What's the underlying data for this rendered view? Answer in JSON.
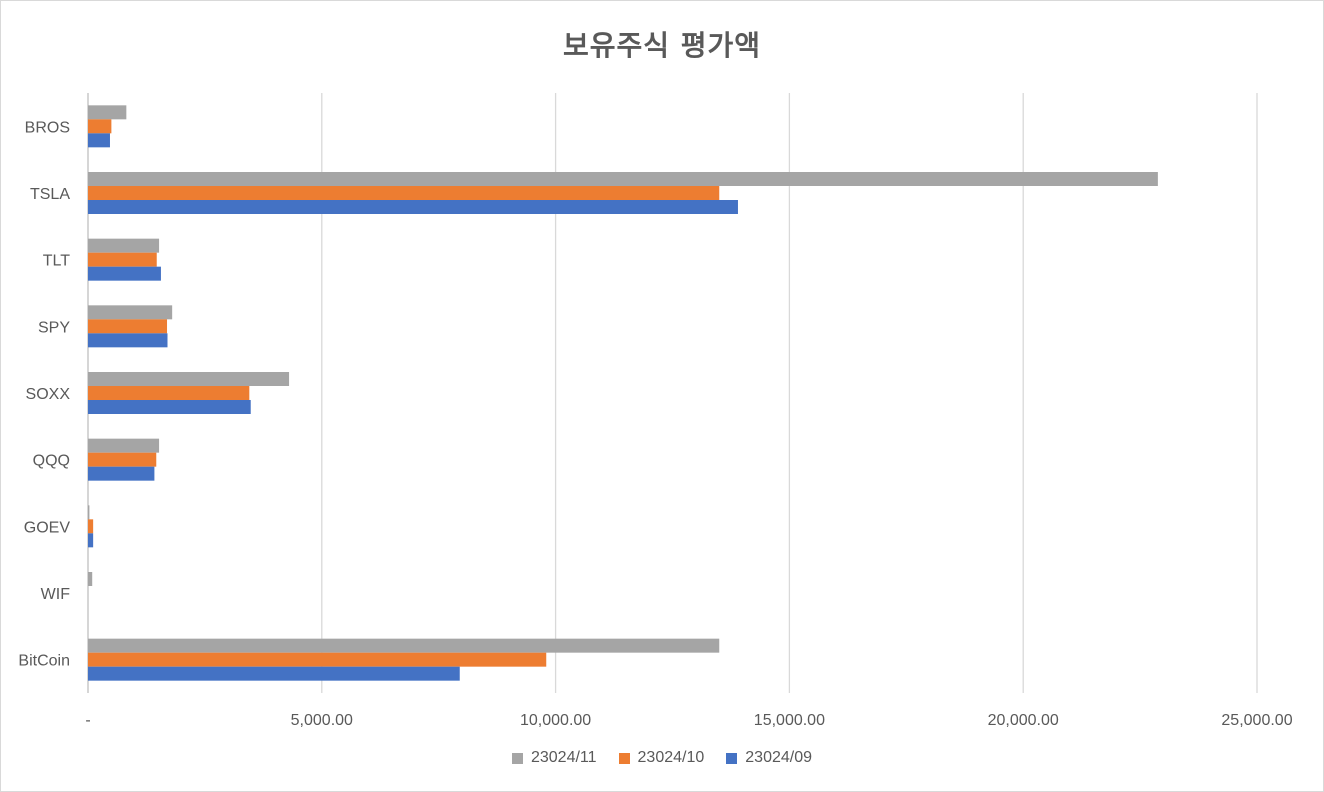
{
  "chart_data": {
    "type": "bar",
    "orientation": "horizontal",
    "title": "보유주식 평가액",
    "categories": [
      "BROS",
      "TSLA",
      "TLT",
      "SPY",
      "SOXX",
      "QQQ",
      "GOEV",
      "WIF",
      "BitCoin"
    ],
    "series": [
      {
        "name": "23024/11",
        "color": "#a5a5a5",
        "values": [
          820,
          22880,
          1520,
          1800,
          4300,
          1520,
          30,
          90,
          13500
        ]
      },
      {
        "name": "23024/10",
        "color": "#ed7d31",
        "values": [
          500,
          13500,
          1470,
          1690,
          3450,
          1460,
          110,
          0,
          9800
        ]
      },
      {
        "name": "23024/09",
        "color": "#4472c4",
        "values": [
          470,
          13900,
          1560,
          1700,
          3480,
          1420,
          110,
          0,
          7950
        ]
      }
    ],
    "x_ticks": [
      "-",
      "5,000.00",
      "10,000.00",
      "15,000.00",
      "20,000.00",
      "25,000.00"
    ],
    "xlim": [
      0,
      25000
    ],
    "grid": true,
    "legend_position": "bottom"
  }
}
